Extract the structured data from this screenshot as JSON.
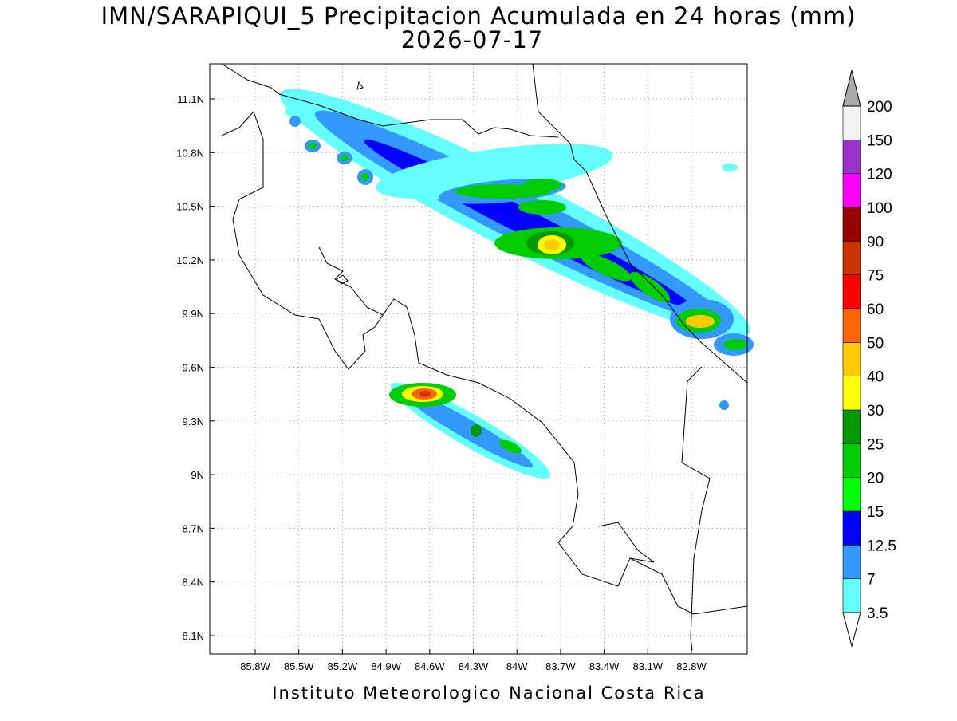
{
  "title": "IMN/SARAPIQUI_5 Precipitacion Acumulada en 24 horas (mm)",
  "subtitle": "2026-07-17",
  "map": {
    "lat_labels": [
      "11.1N",
      "10.8N",
      "10.5N",
      "10.2N",
      "9.9N",
      "9.6N",
      "9.3N",
      "9N",
      "8.7N",
      "8.4N",
      "8.1N"
    ],
    "lon_labels": [
      "85.8W",
      "85.5W",
      "85.2W",
      "84.9W",
      "84.6W",
      "84.3W",
      "84W",
      "83.7W",
      "83.4W",
      "83.1W",
      "82.8W"
    ]
  },
  "colorbar": {
    "levels": [
      3.5,
      7,
      12.5,
      15,
      20,
      25,
      30,
      40,
      50,
      60,
      75,
      90,
      100,
      120,
      150,
      200
    ],
    "colors": [
      "#66ffff",
      "#3399ff",
      "#0000ff",
      "#00ff00",
      "#00cc00",
      "#009900",
      "#ffff00",
      "#ffcc00",
      "#ff6600",
      "#ff0000",
      "#cc3300",
      "#990000",
      "#ff00ff",
      "#9933cc",
      "#f2f2f2"
    ],
    "under_color": "#ffffff",
    "over_color": "#aaaaaa"
  },
  "footer": "Instituto Meteorologico Nacional Costa Rica"
}
